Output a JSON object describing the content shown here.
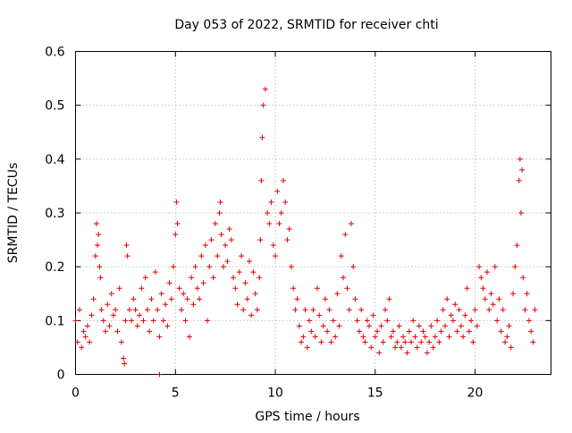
{
  "chart_data": {
    "type": "scatter",
    "title": "Day 053 of 2022, SRMTID for receiver chti",
    "xlabel": "GPS time / hours",
    "ylabel": "SRMTID / TECUs",
    "xlim": [
      0,
      23.8
    ],
    "ylim": [
      0,
      0.6
    ],
    "x_ticks": [
      0,
      5,
      10,
      15,
      20
    ],
    "x_tick_labels": [
      "0",
      "5",
      "10",
      "15",
      "20"
    ],
    "y_ticks": [
      0,
      0.1,
      0.2,
      0.3,
      0.4,
      0.5,
      0.6
    ],
    "y_tick_labels": [
      "0",
      "0.1",
      "0.2",
      "0.3",
      "0.4",
      "0.5",
      "0.6"
    ],
    "grid": true,
    "marker": "+",
    "color": "#e00000",
    "series": [
      {
        "name": "SRMTID",
        "x": [
          0.0,
          0.1,
          0.2,
          0.3,
          0.4,
          0.5,
          0.6,
          0.7,
          0.8,
          0.9,
          1.0,
          1.05,
          1.1,
          1.15,
          1.2,
          1.25,
          1.3,
          1.4,
          1.5,
          1.6,
          1.7,
          1.8,
          1.9,
          2.0,
          2.1,
          2.2,
          2.3,
          2.4,
          2.45,
          2.5,
          2.55,
          2.6,
          2.7,
          2.8,
          2.9,
          3.0,
          3.1,
          3.2,
          3.3,
          3.4,
          3.5,
          3.6,
          3.7,
          3.8,
          3.9,
          4.0,
          4.1,
          4.2,
          4.3,
          4.4,
          4.5,
          4.6,
          4.7,
          4.8,
          4.9,
          5.0,
          5.05,
          5.1,
          5.2,
          5.3,
          5.4,
          5.5,
          5.6,
          5.7,
          5.8,
          5.9,
          6.0,
          6.1,
          6.2,
          6.3,
          6.4,
          6.5,
          6.6,
          6.7,
          6.8,
          6.9,
          7.0,
          7.1,
          7.2,
          7.25,
          7.3,
          7.4,
          7.5,
          7.6,
          7.7,
          7.8,
          7.9,
          8.0,
          8.1,
          8.2,
          8.3,
          8.4,
          8.5,
          8.6,
          8.7,
          8.8,
          8.9,
          9.0,
          9.1,
          9.2,
          9.25,
          9.3,
          9.35,
          9.4,
          9.5,
          9.6,
          9.7,
          9.8,
          9.9,
          10.0,
          10.1,
          10.2,
          10.3,
          10.4,
          10.5,
          10.6,
          10.7,
          10.8,
          10.9,
          11.0,
          11.1,
          11.2,
          11.3,
          11.4,
          11.5,
          11.6,
          11.7,
          11.8,
          11.9,
          12.0,
          12.1,
          12.2,
          12.3,
          12.4,
          12.5,
          12.6,
          12.7,
          12.8,
          12.9,
          13.0,
          13.1,
          13.2,
          13.3,
          13.4,
          13.5,
          13.6,
          13.7,
          13.8,
          13.9,
          14.0,
          14.1,
          14.2,
          14.3,
          14.4,
          14.5,
          14.6,
          14.7,
          14.8,
          14.9,
          15.0,
          15.1,
          15.2,
          15.3,
          15.4,
          15.5,
          15.6,
          15.7,
          15.8,
          15.9,
          16.0,
          16.1,
          16.2,
          16.3,
          16.4,
          16.5,
          16.6,
          16.7,
          16.8,
          16.9,
          17.0,
          17.1,
          17.2,
          17.3,
          17.4,
          17.5,
          17.6,
          17.7,
          17.8,
          17.9,
          18.0,
          18.1,
          18.2,
          18.3,
          18.4,
          18.5,
          18.6,
          18.7,
          18.8,
          18.9,
          19.0,
          19.1,
          19.2,
          19.3,
          19.4,
          19.5,
          19.6,
          19.7,
          19.8,
          19.9,
          20.0,
          20.1,
          20.2,
          20.3,
          20.4,
          20.5,
          20.6,
          20.7,
          20.8,
          20.9,
          21.0,
          21.1,
          21.2,
          21.3,
          21.4,
          21.5,
          21.6,
          21.7,
          21.8,
          21.9,
          22.0,
          22.1,
          22.2,
          22.25,
          22.3,
          22.35,
          22.4,
          22.5,
          22.6,
          22.7,
          22.8,
          22.9,
          23.0,
          4.2
        ],
        "y": [
          0.1,
          0.06,
          0.12,
          0.05,
          0.08,
          0.07,
          0.09,
          0.06,
          0.11,
          0.14,
          0.22,
          0.28,
          0.24,
          0.26,
          0.2,
          0.18,
          0.12,
          0.1,
          0.08,
          0.13,
          0.09,
          0.15,
          0.11,
          0.12,
          0.08,
          0.16,
          0.06,
          0.03,
          0.02,
          0.1,
          0.24,
          0.22,
          0.12,
          0.1,
          0.14,
          0.12,
          0.09,
          0.11,
          0.16,
          0.1,
          0.18,
          0.12,
          0.08,
          0.14,
          0.1,
          0.19,
          0.12,
          0.07,
          0.15,
          0.1,
          0.13,
          0.09,
          0.17,
          0.14,
          0.2,
          0.26,
          0.32,
          0.28,
          0.16,
          0.12,
          0.15,
          0.1,
          0.14,
          0.07,
          0.18,
          0.13,
          0.2,
          0.16,
          0.14,
          0.22,
          0.17,
          0.24,
          0.1,
          0.2,
          0.25,
          0.18,
          0.28,
          0.22,
          0.3,
          0.32,
          0.26,
          0.2,
          0.24,
          0.21,
          0.27,
          0.25,
          0.18,
          0.16,
          0.13,
          0.19,
          0.22,
          0.12,
          0.17,
          0.14,
          0.21,
          0.11,
          0.19,
          0.15,
          0.12,
          0.18,
          0.25,
          0.36,
          0.44,
          0.5,
          0.53,
          0.3,
          0.28,
          0.32,
          0.24,
          0.22,
          0.34,
          0.28,
          0.3,
          0.36,
          0.32,
          0.25,
          0.27,
          0.2,
          0.16,
          0.12,
          0.14,
          0.09,
          0.06,
          0.07,
          0.12,
          0.05,
          0.1,
          0.08,
          0.12,
          0.07,
          0.16,
          0.11,
          0.06,
          0.09,
          0.14,
          0.08,
          0.12,
          0.06,
          0.1,
          0.07,
          0.15,
          0.09,
          0.22,
          0.18,
          0.26,
          0.16,
          0.12,
          0.28,
          0.2,
          0.14,
          0.1,
          0.08,
          0.12,
          0.07,
          0.06,
          0.1,
          0.09,
          0.05,
          0.11,
          0.07,
          0.08,
          0.04,
          0.09,
          0.06,
          0.12,
          0.1,
          0.14,
          0.07,
          0.08,
          0.05,
          0.06,
          0.09,
          0.05,
          0.07,
          0.06,
          0.04,
          0.08,
          0.06,
          0.1,
          0.07,
          0.05,
          0.09,
          0.06,
          0.08,
          0.07,
          0.04,
          0.06,
          0.09,
          0.05,
          0.07,
          0.1,
          0.06,
          0.08,
          0.12,
          0.09,
          0.14,
          0.07,
          0.11,
          0.1,
          0.13,
          0.08,
          0.12,
          0.09,
          0.07,
          0.11,
          0.16,
          0.08,
          0.1,
          0.06,
          0.12,
          0.09,
          0.2,
          0.18,
          0.16,
          0.14,
          0.19,
          0.12,
          0.15,
          0.13,
          0.2,
          0.1,
          0.14,
          0.08,
          0.12,
          0.06,
          0.07,
          0.09,
          0.05,
          0.15,
          0.2,
          0.24,
          0.36,
          0.4,
          0.3,
          0.38,
          0.18,
          0.12,
          0.15,
          0.1,
          0.08,
          0.06,
          0.12,
          0.0
        ]
      }
    ]
  }
}
